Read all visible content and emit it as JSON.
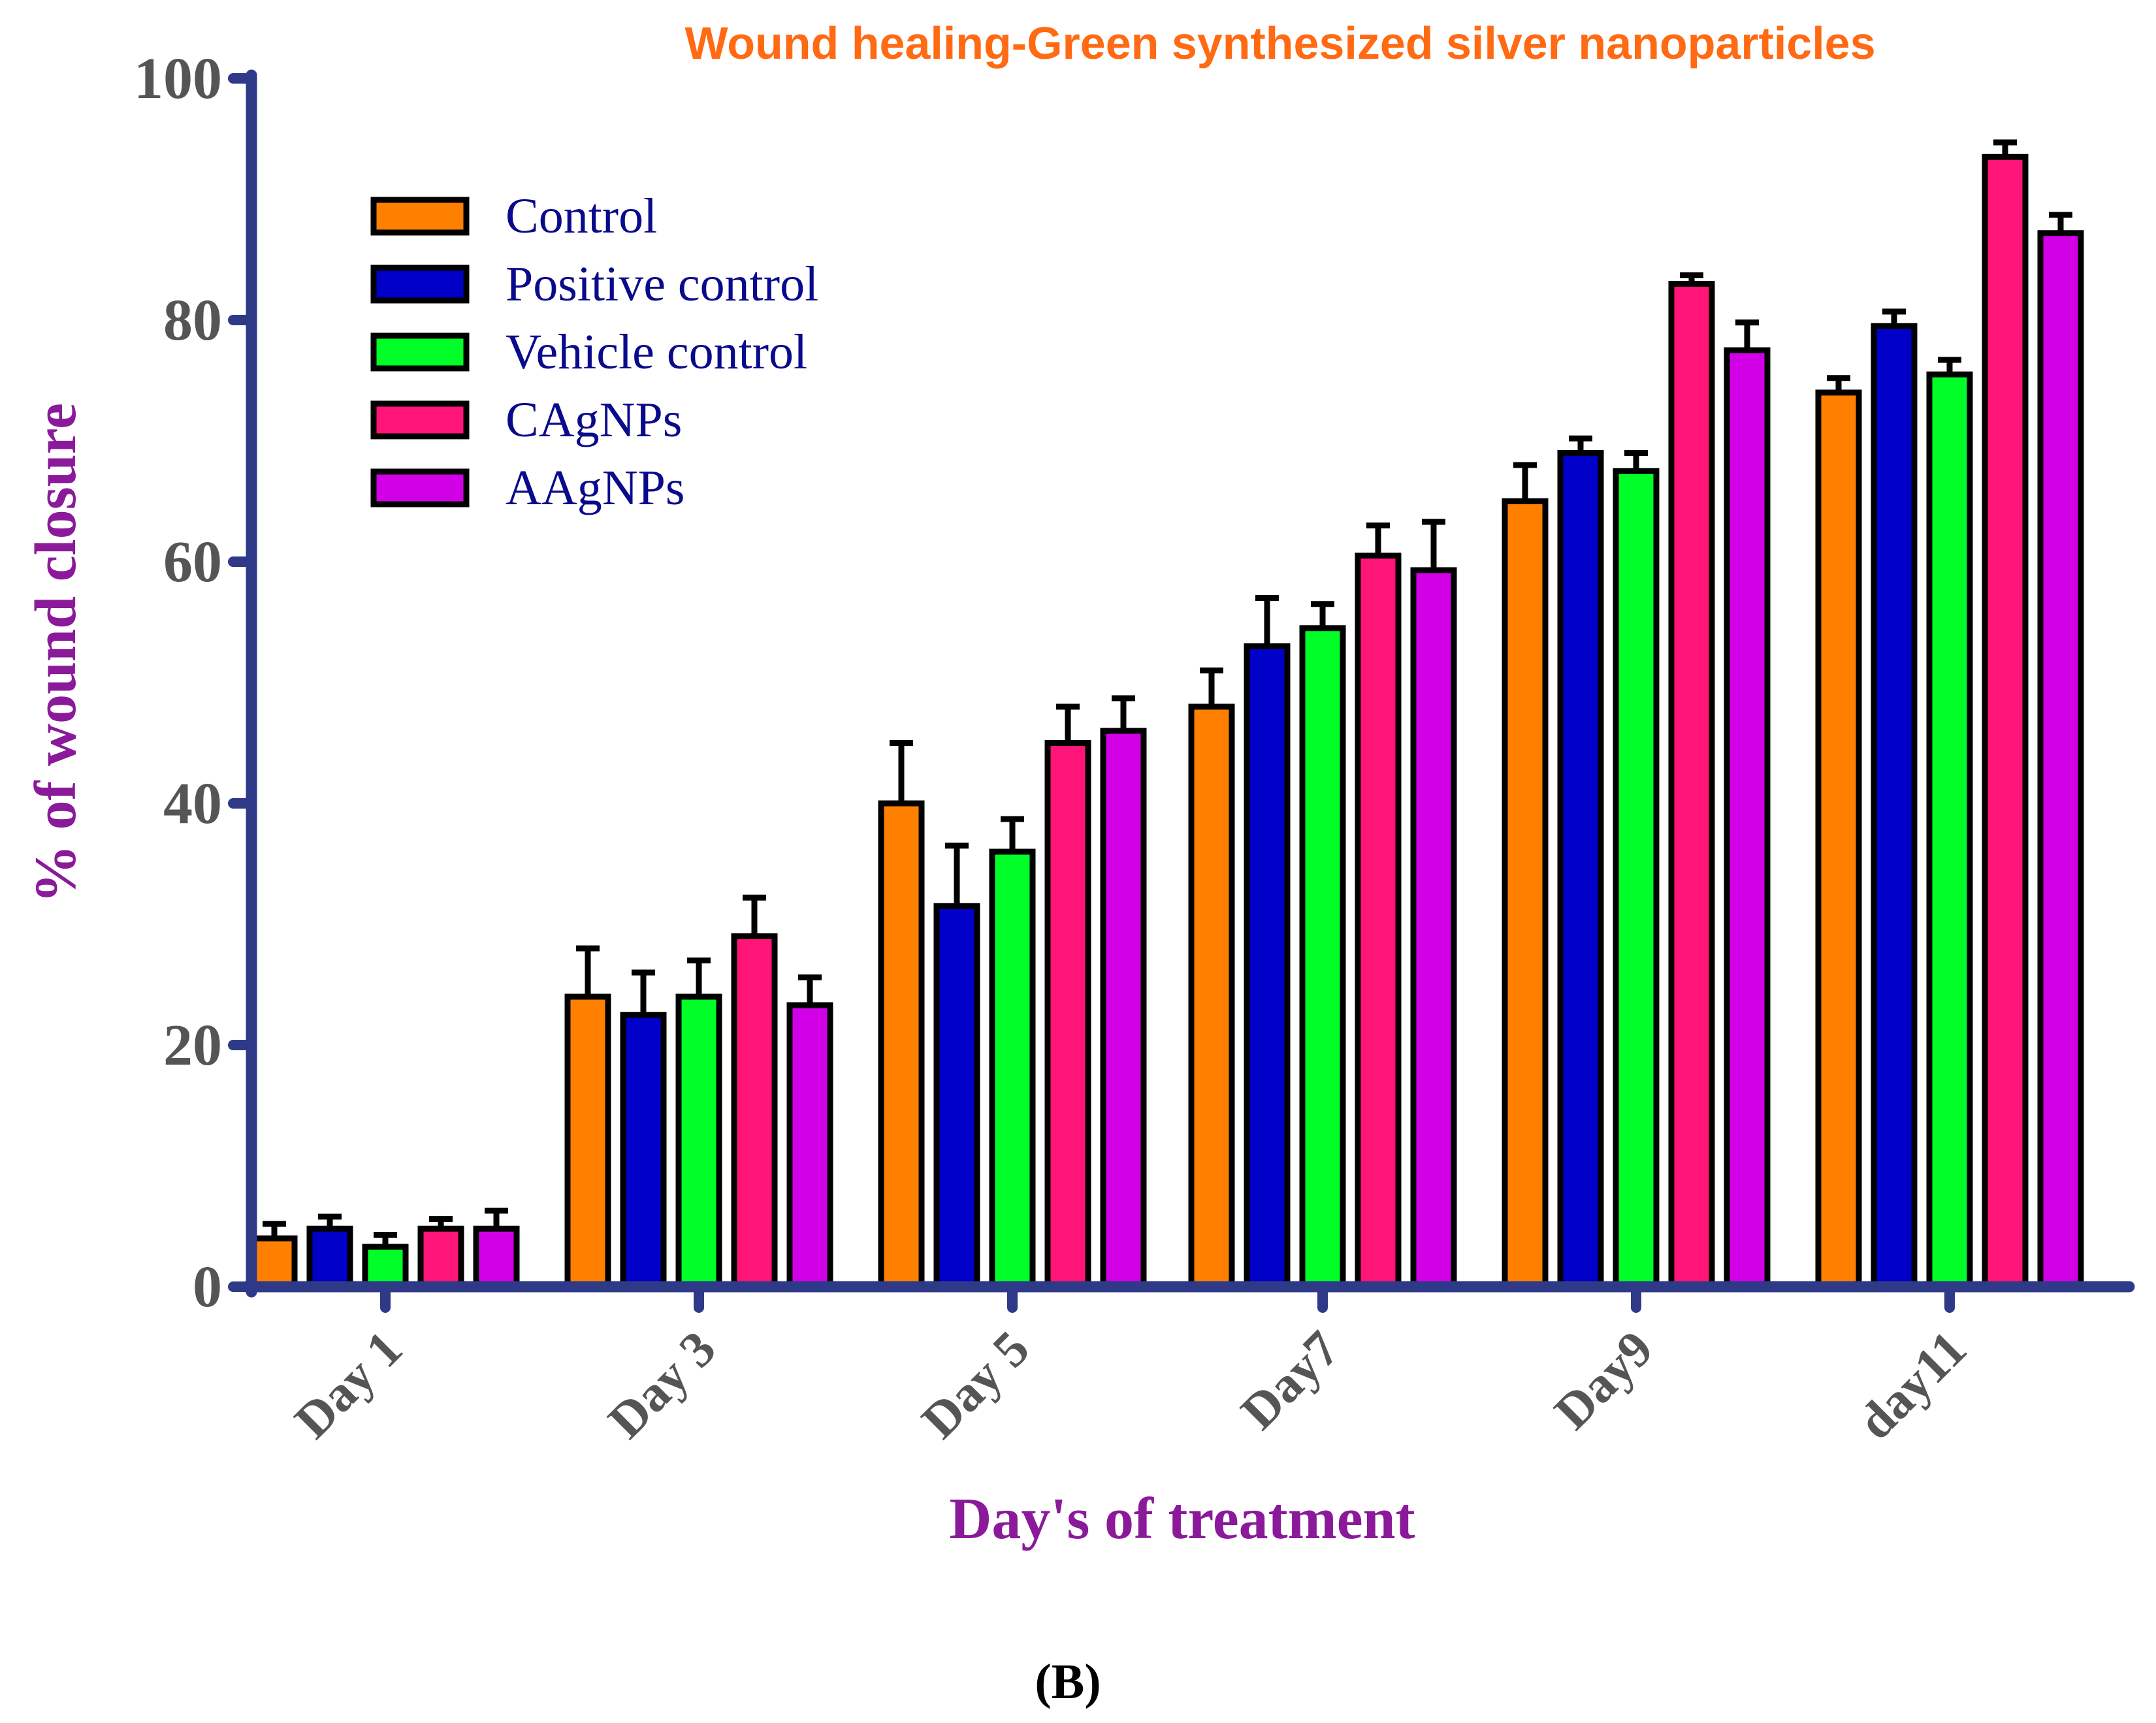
{
  "panel_label": "(B)",
  "colors": {
    "axis": "#2e3a87",
    "title": "#ff6a13",
    "axis_title": "#8b1a9b",
    "legend_text": "#0a0a8c",
    "tick_text": "#555555"
  },
  "chart_data": {
    "type": "bar",
    "title": "Wound healing-Green synthesized silver nanoparticles",
    "xlabel": "Day's of treatment",
    "ylabel": "% of wound closure",
    "ylim": [
      0,
      100
    ],
    "yticks": [
      0,
      20,
      40,
      60,
      80,
      100
    ],
    "grid": false,
    "legend_position": "top-left",
    "categories": [
      "Day 1",
      "Day 3",
      "Day 5",
      "Day7",
      "Day9",
      "day11"
    ],
    "series": [
      {
        "name": "Control",
        "color": "#ff8000",
        "values": [
          4,
          24,
          40,
          48,
          65,
          74
        ],
        "errors": [
          1.2,
          4,
          5,
          3,
          3,
          1.2
        ]
      },
      {
        "name": "Positive control",
        "color": "#0000c8",
        "values": [
          4.8,
          22.5,
          31.5,
          53,
          69,
          79.5
        ],
        "errors": [
          1,
          3.5,
          5,
          4,
          1.2,
          1.2
        ]
      },
      {
        "name": "Vehicle control",
        "color": "#00ff28",
        "values": [
          3.3,
          24,
          36,
          54.5,
          67.5,
          75.5
        ],
        "errors": [
          1,
          3,
          2.7,
          2,
          1.5,
          1.2
        ]
      },
      {
        "name": "CAgNPs",
        "color": "#ff1478",
        "values": [
          4.8,
          29,
          45,
          60.5,
          83,
          93.5
        ],
        "errors": [
          0.8,
          3.2,
          3,
          2.5,
          0.7,
          1.2
        ]
      },
      {
        "name": "AAgNPs",
        "color": "#d200e6",
        "values": [
          4.8,
          23.3,
          46,
          59.3,
          77.5,
          87.2
        ],
        "errors": [
          1.5,
          2.3,
          2.7,
          4,
          2.3,
          1.5
        ]
      }
    ]
  }
}
